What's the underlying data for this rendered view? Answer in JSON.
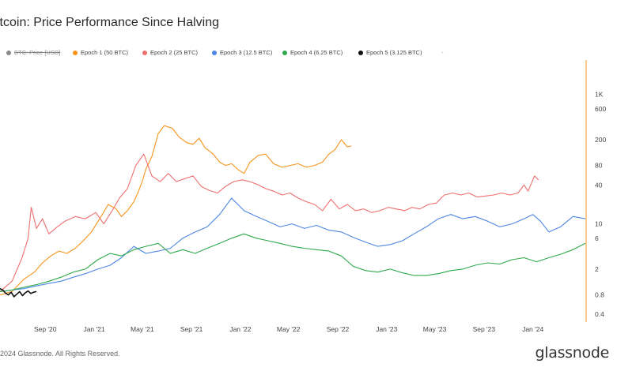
{
  "title": "itcoin: Price Performance Since Halving",
  "legend": [
    {
      "label": "BTC: Price [USD]",
      "color": "#8a8a8a",
      "disabled": true
    },
    {
      "label": "Epoch 1 (50 BTC)",
      "color": "#f7931a",
      "disabled": false
    },
    {
      "label": "Epoch 2 (25 BTC)",
      "color": "#ef6f6f",
      "disabled": false
    },
    {
      "label": "Epoch 3 (12.5 BTC)",
      "color": "#4e86e4",
      "disabled": false
    },
    {
      "label": "Epoch 4 (6.25 BTC)",
      "color": "#2ea84a",
      "disabled": false
    },
    {
      "label": "Epoch 5 (3.125 BTC)",
      "color": "#111111",
      "disabled": false
    }
  ],
  "legend_extra": "-",
  "footer": "2024 Glassnode. All Rights Reserved.",
  "brand": "glassnode",
  "chart_data": {
    "type": "line",
    "title": "itcoin: Price Performance Since Halving",
    "yscale": "log",
    "y_ticks": [
      1000,
      600,
      200,
      80,
      40,
      10,
      6,
      2,
      0.8,
      0.4
    ],
    "y_tick_labels": [
      "1K",
      "600",
      "200",
      "80",
      "40",
      "10",
      "6",
      "2",
      "0.8",
      "0.4"
    ],
    "ylim": [
      0.35,
      2000
    ],
    "x_ticks": [
      "2020-09-01",
      "2021-01-01",
      "2021-05-01",
      "2021-09-01",
      "2022-01-01",
      "2022-05-01",
      "2022-09-01",
      "2023-01-01",
      "2023-05-01",
      "2023-09-01",
      "2024-01-01"
    ],
    "x_tick_labels": [
      "Sep '20",
      "Jan '21",
      "May '21",
      "Sep '21",
      "Jan '22",
      "May '22",
      "Sep '22",
      "Jan '23",
      "May '23",
      "Sep '23",
      "Jan '24"
    ],
    "xlim": [
      "2020-05-11",
      "2024-05-11"
    ],
    "grid": false,
    "series": [
      {
        "name": "Epoch 1 (50 BTC)",
        "color": "#f7931a",
        "x": [
          "2020-05-11",
          "2020-06-10",
          "2020-07-10",
          "2020-08-05",
          "2020-08-25",
          "2020-09-15",
          "2020-10-05",
          "2020-10-25",
          "2020-11-15",
          "2020-12-05",
          "2020-12-25",
          "2021-01-15",
          "2021-02-05",
          "2021-02-25",
          "2021-03-10",
          "2021-03-25",
          "2021-04-10",
          "2021-04-20",
          "2021-05-01",
          "2021-05-10",
          "2021-05-25",
          "2021-06-10",
          "2021-06-25",
          "2021-07-15",
          "2021-08-01",
          "2021-08-20",
          "2021-09-05",
          "2021-09-20",
          "2021-10-05",
          "2021-10-25",
          "2021-11-10",
          "2021-11-25",
          "2021-12-10",
          "2021-12-25",
          "2022-01-10",
          "2022-01-25",
          "2022-02-15",
          "2022-03-05",
          "2022-03-25",
          "2022-04-15",
          "2022-05-05",
          "2022-05-25",
          "2022-06-15",
          "2022-07-05",
          "2022-07-25",
          "2022-08-10",
          "2022-08-25",
          "2022-09-10",
          "2022-09-25",
          "2022-10-05"
        ],
        "values": [
          0.8,
          0.9,
          1.4,
          1.8,
          2.5,
          3.2,
          3.8,
          3.5,
          4.2,
          5.5,
          7.5,
          12,
          20,
          17,
          13,
          16,
          22,
          30,
          45,
          70,
          110,
          250,
          330,
          300,
          220,
          180,
          170,
          210,
          150,
          120,
          90,
          80,
          85,
          70,
          60,
          90,
          115,
          120,
          85,
          75,
          80,
          85,
          75,
          80,
          90,
          120,
          140,
          200,
          155,
          160
        ]
      },
      {
        "name": "Epoch 2 (25 BTC)",
        "color": "#ef6f6f",
        "x": [
          "2020-05-11",
          "2020-06-10",
          "2020-07-05",
          "2020-07-20",
          "2020-07-28",
          "2020-08-10",
          "2020-08-25",
          "2020-09-10",
          "2020-10-01",
          "2020-10-20",
          "2020-11-15",
          "2020-12-10",
          "2021-01-05",
          "2021-01-25",
          "2021-02-15",
          "2021-03-05",
          "2021-03-25",
          "2021-04-15",
          "2021-05-05",
          "2021-05-25",
          "2021-06-15",
          "2021-07-05",
          "2021-07-25",
          "2021-08-15",
          "2021-09-05",
          "2021-09-25",
          "2021-10-15",
          "2021-11-05",
          "2021-11-25",
          "2021-12-15",
          "2022-01-05",
          "2022-01-25",
          "2022-02-15",
          "2022-03-05",
          "2022-03-25",
          "2022-04-15",
          "2022-05-05",
          "2022-05-25",
          "2022-06-15",
          "2022-07-05",
          "2022-07-25",
          "2022-08-15",
          "2022-09-05",
          "2022-09-25",
          "2022-10-15",
          "2022-11-05",
          "2022-11-25",
          "2022-12-15",
          "2023-01-05",
          "2023-01-25",
          "2023-02-15",
          "2023-03-05",
          "2023-03-25",
          "2023-04-15",
          "2023-05-05",
          "2023-05-25",
          "2023-06-15",
          "2023-07-05",
          "2023-07-25",
          "2023-08-15",
          "2023-09-05",
          "2023-09-25",
          "2023-10-15",
          "2023-11-05",
          "2023-11-25",
          "2023-12-10",
          "2023-12-20",
          "2024-01-05",
          "2024-01-15"
        ],
        "values": [
          0.9,
          1.3,
          3.0,
          6.0,
          18.0,
          8.5,
          12.0,
          7.0,
          9.0,
          11.0,
          13.0,
          12.0,
          15.0,
          10.0,
          16.0,
          25.0,
          35.0,
          80.0,
          120.0,
          55.0,
          45.0,
          60.0,
          45.0,
          50.0,
          55.0,
          38.0,
          33.0,
          30.0,
          38.0,
          45.0,
          48.0,
          45.0,
          40.0,
          35.0,
          32.0,
          28.0,
          30.0,
          25.0,
          22.0,
          20.0,
          16.0,
          24.0,
          17.0,
          20.0,
          16.0,
          17.0,
          15.0,
          16.0,
          18.0,
          17.0,
          16.0,
          18.0,
          17.0,
          20.0,
          21.0,
          28.0,
          30.0,
          28.0,
          30.0,
          26.0,
          27.0,
          28.0,
          30.0,
          28.0,
          30.0,
          40.0,
          32.0,
          55.0,
          48.0
        ]
      },
      {
        "name": "Epoch 3 (12.5 BTC)",
        "color": "#4e86e4",
        "x": [
          "2020-05-11",
          "2020-06-10",
          "2020-07-10",
          "2020-08-10",
          "2020-09-10",
          "2020-10-10",
          "2020-11-10",
          "2020-12-10",
          "2021-01-10",
          "2021-02-10",
          "2021-03-10",
          "2021-04-10",
          "2021-05-10",
          "2021-06-10",
          "2021-07-10",
          "2021-08-10",
          "2021-09-10",
          "2021-10-10",
          "2021-11-10",
          "2021-12-10",
          "2022-01-10",
          "2022-02-10",
          "2022-03-10",
          "2022-04-10",
          "2022-05-10",
          "2022-06-10",
          "2022-07-10",
          "2022-08-10",
          "2022-09-10",
          "2022-10-10",
          "2022-11-10",
          "2022-12-10",
          "2023-01-10",
          "2023-02-10",
          "2023-03-10",
          "2023-04-10",
          "2023-05-10",
          "2023-06-10",
          "2023-07-10",
          "2023-08-10",
          "2023-09-10",
          "2023-10-10",
          "2023-11-10",
          "2023-12-10",
          "2024-01-01",
          "2024-01-20",
          "2024-02-10",
          "2024-03-10",
          "2024-04-10",
          "2024-05-11"
        ],
        "values": [
          0.9,
          0.95,
          1.0,
          1.1,
          1.2,
          1.3,
          1.5,
          1.7,
          2.0,
          2.3,
          3.0,
          4.5,
          3.5,
          3.8,
          4.2,
          6.0,
          7.5,
          9.0,
          14.0,
          25.0,
          16.0,
          13.0,
          11.0,
          9.0,
          10.0,
          8.5,
          9.5,
          8.0,
          7.5,
          6.2,
          5.2,
          4.5,
          4.8,
          5.5,
          7.0,
          9.0,
          12.0,
          14.0,
          12.0,
          13.0,
          11.0,
          9.0,
          10.0,
          12.0,
          14.0,
          11.0,
          7.5,
          9.0,
          13.0,
          12.0
        ]
      },
      {
        "name": "Epoch 4 (6.25 BTC)",
        "color": "#2ea84a",
        "x": [
          "2020-05-11",
          "2020-06-10",
          "2020-07-10",
          "2020-08-10",
          "2020-09-10",
          "2020-10-10",
          "2020-11-10",
          "2020-12-10",
          "2021-01-10",
          "2021-02-10",
          "2021-03-10",
          "2021-04-10",
          "2021-05-10",
          "2021-06-10",
          "2021-07-10",
          "2021-08-10",
          "2021-09-10",
          "2021-10-10",
          "2021-11-10",
          "2021-12-10",
          "2022-01-10",
          "2022-02-10",
          "2022-03-10",
          "2022-04-10",
          "2022-05-10",
          "2022-06-10",
          "2022-07-10",
          "2022-08-10",
          "2022-09-10",
          "2022-10-10",
          "2022-11-10",
          "2022-12-10",
          "2023-01-10",
          "2023-02-10",
          "2023-03-10",
          "2023-04-10",
          "2023-05-10",
          "2023-06-10",
          "2023-07-10",
          "2023-08-10",
          "2023-09-10",
          "2023-10-10",
          "2023-11-10",
          "2023-12-10",
          "2024-01-10",
          "2024-02-10",
          "2024-03-10",
          "2024-04-10",
          "2024-05-11"
        ],
        "values": [
          0.9,
          0.95,
          1.05,
          1.15,
          1.3,
          1.5,
          1.8,
          2.0,
          2.8,
          3.5,
          3.2,
          4.0,
          4.5,
          5.0,
          3.5,
          4.0,
          3.5,
          4.2,
          5.0,
          6.0,
          7.0,
          6.0,
          5.5,
          5.0,
          4.5,
          4.2,
          4.0,
          3.8,
          3.2,
          2.2,
          1.9,
          1.8,
          2.0,
          1.75,
          1.6,
          1.6,
          1.7,
          1.9,
          2.0,
          2.3,
          2.5,
          2.4,
          2.8,
          3.0,
          2.6,
          3.0,
          3.4,
          4.0,
          5.0
        ]
      },
      {
        "name": "Epoch 5 (3.125 BTC)",
        "color": "#111111",
        "x": [
          "2020-05-11",
          "2020-05-18",
          "2020-05-25",
          "2020-06-01",
          "2020-06-08",
          "2020-06-15",
          "2020-06-22",
          "2020-06-29",
          "2020-07-06",
          "2020-07-13",
          "2020-07-20",
          "2020-07-27",
          "2020-08-03",
          "2020-08-10"
        ],
        "values": [
          1.0,
          0.95,
          0.85,
          0.8,
          0.88,
          0.75,
          0.82,
          0.9,
          0.78,
          0.86,
          0.92,
          0.84,
          0.88,
          0.9
        ]
      }
    ]
  }
}
